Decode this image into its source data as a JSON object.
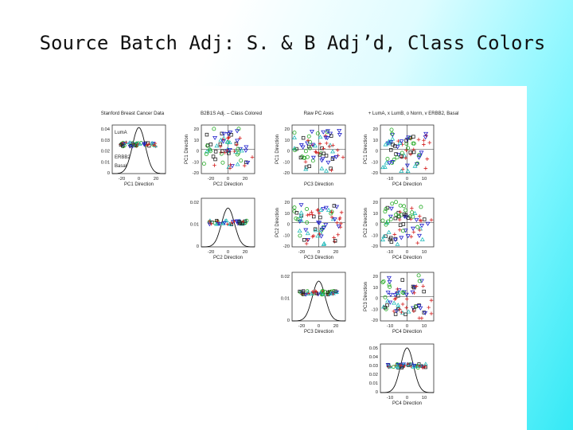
{
  "slide": {
    "title": "Source Batch Adj:  S. & B Adj’d, Class Colors"
  },
  "figure": {
    "panel_titles": {
      "p11": "Stanford Breast Cancer Data",
      "p12": "B2B1S Adj. – Class Colored",
      "p13": "Raw PC Axes",
      "p14": "+ LumA, x LumB, o Norm, v ERBB2, Basal"
    },
    "legend": [
      {
        "label": "LumA",
        "color": "#d42020"
      },
      {
        "label": "LumB",
        "color": "#222222"
      },
      {
        "label": "Norm",
        "color": "#22aa22"
      },
      {
        "label": "ERBB2",
        "color": "#2222cc"
      },
      {
        "label": "Basal",
        "color": "#22bbbb"
      }
    ],
    "axis_labels": {
      "pc1": "PC1 Direction",
      "pc2": "PC2 Direction",
      "pc3": "PC3 Direction",
      "pc4": "PC4 Direction"
    },
    "ticks": {
      "density1": [
        "0.04",
        "0.03",
        "0.02",
        "0.01",
        "0"
      ],
      "density2": [
        "0.02",
        "0.01",
        "0"
      ],
      "density3": [
        "0.02",
        "0.01",
        "0"
      ],
      "density4": [
        "0.05",
        "0.04",
        "0.03",
        "0.02",
        "0.01",
        "0"
      ],
      "pc_x_wide": [
        "-20",
        "0",
        "20"
      ],
      "pc_x_narrow": [
        "-10",
        "0",
        "10"
      ],
      "pc1_y": [
        "20",
        "10",
        "0",
        "-10",
        "-20"
      ],
      "pc2_y": [
        "20",
        "10",
        "0",
        "-10",
        "-20"
      ],
      "pc3_y": [
        "20",
        "10",
        "0",
        "-10",
        "-20"
      ]
    }
  }
}
